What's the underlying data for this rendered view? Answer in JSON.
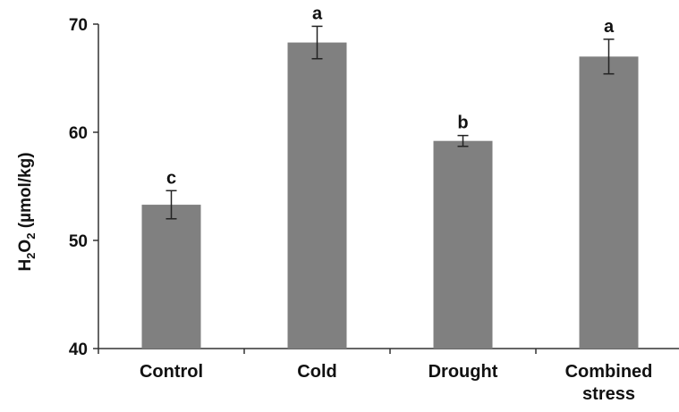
{
  "chart_data": {
    "type": "bar",
    "title": "",
    "xlabel": "",
    "ylabel": {
      "base": "H",
      "sub1": "2",
      "mid": "O",
      "sub2": "2",
      "unit": " (µmol/kg)"
    },
    "categories": [
      "Control",
      "Cold",
      "Drought",
      "Combined stress"
    ],
    "category_lines": [
      [
        "Control"
      ],
      [
        "Cold"
      ],
      [
        "Drought"
      ],
      [
        "Combined",
        "stress"
      ]
    ],
    "values": [
      53.3,
      68.3,
      59.2,
      67.0
    ],
    "errors": [
      1.3,
      1.5,
      0.5,
      1.6
    ],
    "significance": [
      "c",
      "a",
      "b",
      "a"
    ],
    "ylim": [
      40,
      70
    ],
    "yticks": [
      "40",
      "50",
      "60",
      "70"
    ],
    "grid": false,
    "legend": "none",
    "bar_color": "#808080",
    "axis_color": "#333333"
  }
}
